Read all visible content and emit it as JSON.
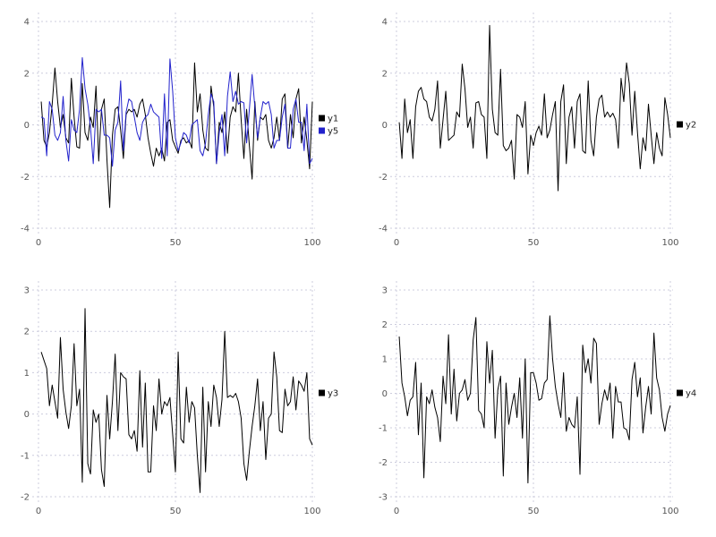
{
  "page": {
    "background": "#ffffff",
    "grid_color": "#ccccdd",
    "tick_label_color": "#555555",
    "legend_text_color": "#222222"
  },
  "chart_data": [
    {
      "type": "line",
      "title": "",
      "xlabel": "",
      "ylabel": "",
      "xlim": [
        0,
        100
      ],
      "ylim": [
        -4,
        4
      ],
      "xticks": [
        0,
        50,
        100
      ],
      "yticks": [
        -4,
        -2,
        0,
        2,
        4
      ],
      "grid": true,
      "legend_position": "right",
      "x_start": 1,
      "x_step": 1,
      "series": [
        {
          "name": "y1",
          "color": "#000000",
          "values": [
            0.9,
            -0.6,
            -0.85,
            -0.3,
            0.8,
            2.2,
            0.9,
            -0.1,
            0.4,
            -0.5,
            -0.7,
            1.8,
            0.3,
            -0.85,
            -0.9,
            1.6,
            -0.3,
            -0.6,
            0.3,
            -0.1,
            1.5,
            -1.4,
            0.6,
            1.0,
            -1.35,
            -3.2,
            -0.4,
            0.6,
            0.7,
            -0.2,
            -1.3,
            0.4,
            0.6,
            0.5,
            0.6,
            0.3,
            0.8,
            1.0,
            0.4,
            -0.5,
            -1.1,
            -1.6,
            -0.9,
            -1.2,
            -0.9,
            -1.4,
            0.1,
            0.2,
            -0.6,
            -0.85,
            -1.1,
            -0.6,
            -0.5,
            -0.7,
            -0.6,
            -0.9,
            2.4,
            0.5,
            1.2,
            -0.2,
            -0.9,
            -1.0,
            1.5,
            0.7,
            -1.5,
            0.1,
            -0.3,
            0.5,
            -1.1,
            0.3,
            0.7,
            0.5,
            2.0,
            0.2,
            -1.3,
            0.6,
            -0.8,
            -2.1,
            0.9,
            -0.6,
            0.3,
            0.2,
            0.4,
            -0.6,
            -0.9,
            -0.5,
            0.3,
            -0.6,
            1.0,
            1.2,
            -0.9,
            0.4,
            -0.5,
            1.0,
            1.4,
            -0.7,
            0.3,
            -0.6,
            -1.7,
            0.9
          ]
        },
        {
          "name": "y5",
          "color": "#2222cc",
          "values": [
            0.3,
            0.25,
            -1.2,
            0.9,
            0.6,
            -0.4,
            -0.6,
            -0.3,
            1.1,
            -0.6,
            -1.4,
            0.2,
            -0.2,
            -0.3,
            0.6,
            2.6,
            1.4,
            0.8,
            -0.1,
            -1.5,
            0.6,
            0.5,
            0.6,
            -0.4,
            -0.4,
            -0.5,
            -1.6,
            -0.2,
            0.1,
            1.7,
            -1.0,
            0.5,
            1.0,
            0.9,
            0.3,
            -0.3,
            -0.6,
            0.1,
            0.3,
            0.4,
            0.8,
            0.5,
            0.4,
            0.3,
            -1.3,
            1.2,
            -1.2,
            2.55,
            1.3,
            -0.5,
            -1.0,
            -0.7,
            -0.3,
            -0.4,
            -0.7,
            0.0,
            0.1,
            0.2,
            -1.0,
            -1.2,
            -0.7,
            0.4,
            1.2,
            0.9,
            -1.5,
            -0.3,
            0.4,
            -1.2,
            1.1,
            2.05,
            0.9,
            1.3,
            0.8,
            0.9,
            0.85,
            -0.7,
            0.6,
            1.95,
            0.7,
            -0.5,
            0.3,
            0.9,
            0.8,
            0.9,
            0.4,
            -0.9,
            -0.6,
            -0.6,
            0.3,
            0.8,
            -0.9,
            -0.9,
            0.6,
            1.0,
            0.1,
            0.1,
            -1.0,
            0.8,
            -1.5,
            -1.3
          ]
        }
      ]
    },
    {
      "type": "line",
      "title": "",
      "xlabel": "",
      "ylabel": "",
      "xlim": [
        0,
        100
      ],
      "ylim": [
        -4,
        4
      ],
      "xticks": [
        0,
        50,
        100
      ],
      "yticks": [
        -4,
        -2,
        0,
        2,
        4
      ],
      "grid": true,
      "legend_position": "right",
      "x_start": 1,
      "x_step": 1,
      "series": [
        {
          "name": "y2",
          "color": "#000000",
          "values": [
            0.1,
            -1.3,
            1.0,
            -0.3,
            0.2,
            -1.3,
            0.7,
            1.3,
            1.45,
            1.0,
            0.9,
            0.3,
            0.15,
            0.6,
            1.7,
            -0.9,
            0.2,
            1.3,
            -0.6,
            -0.5,
            -0.4,
            0.5,
            0.3,
            2.35,
            1.4,
            -0.1,
            0.3,
            -0.9,
            0.85,
            0.9,
            0.4,
            0.3,
            -1.3,
            3.85,
            0.6,
            -0.3,
            -0.4,
            2.15,
            -0.8,
            -1.0,
            -0.9,
            -0.6,
            -2.1,
            0.4,
            0.3,
            -0.1,
            0.9,
            -1.9,
            -0.4,
            -0.8,
            -0.3,
            -0.05,
            -0.4,
            1.2,
            -0.5,
            -0.2,
            0.4,
            0.9,
            -2.55,
            0.9,
            1.55,
            -1.5,
            0.3,
            0.7,
            -0.9,
            0.9,
            1.2,
            -1.0,
            -1.1,
            1.7,
            -0.6,
            -1.2,
            0.3,
            1.0,
            1.15,
            0.3,
            0.5,
            0.3,
            0.45,
            0.2,
            -0.9,
            1.8,
            0.9,
            2.4,
            1.6,
            -0.4,
            1.3,
            -0.3,
            -1.7,
            -0.5,
            -1.0,
            0.8,
            -0.4,
            -1.5,
            -0.3,
            -0.9,
            -1.2,
            1.05,
            0.4,
            -0.5
          ]
        }
      ]
    },
    {
      "type": "line",
      "title": "",
      "xlabel": "",
      "ylabel": "",
      "xlim": [
        0,
        100
      ],
      "ylim": [
        -2,
        3
      ],
      "xticks": [
        0,
        50,
        100
      ],
      "yticks": [
        -2,
        -1,
        0,
        1,
        2,
        3
      ],
      "grid": true,
      "legend_position": "right",
      "x_start": 1,
      "x_step": 1,
      "series": [
        {
          "name": "y3",
          "color": "#000000",
          "values": [
            1.5,
            1.3,
            1.1,
            0.2,
            0.7,
            0.3,
            -0.1,
            1.85,
            0.6,
            0.05,
            -0.35,
            0.2,
            1.7,
            0.2,
            0.6,
            -1.65,
            2.55,
            -1.2,
            -1.45,
            0.1,
            -0.2,
            0.0,
            -1.35,
            -1.75,
            0.45,
            -0.6,
            0.3,
            1.45,
            -0.4,
            1.0,
            0.9,
            0.85,
            -0.5,
            -0.6,
            -0.4,
            -0.9,
            1.05,
            -0.8,
            0.75,
            -1.4,
            -1.4,
            0.2,
            -0.4,
            0.85,
            0.0,
            0.3,
            0.2,
            0.4,
            -0.5,
            -1.4,
            1.5,
            -0.6,
            -0.7,
            0.65,
            -0.2,
            0.3,
            0.15,
            -1.0,
            -1.9,
            0.65,
            -1.4,
            0.3,
            -0.3,
            0.7,
            0.4,
            -0.3,
            0.35,
            2.0,
            0.4,
            0.45,
            0.4,
            0.5,
            0.3,
            -0.1,
            -1.2,
            -1.6,
            -0.9,
            -0.3,
            0.2,
            0.85,
            -0.4,
            0.3,
            -1.1,
            -0.1,
            0.0,
            1.5,
            0.9,
            -0.4,
            -0.45,
            0.6,
            0.2,
            0.3,
            0.9,
            0.1,
            0.8,
            0.7,
            0.55,
            1.0,
            -0.6,
            -0.75
          ]
        }
      ]
    },
    {
      "type": "line",
      "title": "",
      "xlabel": "",
      "ylabel": "",
      "xlim": [
        0,
        100
      ],
      "ylim": [
        -3,
        3
      ],
      "xticks": [
        0,
        50,
        100
      ],
      "yticks": [
        -3,
        -2,
        -1,
        0,
        1,
        2,
        3
      ],
      "grid": true,
      "legend_position": "right",
      "x_start": 1,
      "x_step": 1,
      "series": [
        {
          "name": "y4",
          "color": "#000000",
          "values": [
            1.65,
            0.3,
            -0.1,
            -0.65,
            -0.2,
            -0.1,
            0.9,
            -1.2,
            0.3,
            -2.45,
            -0.1,
            -0.3,
            0.1,
            -0.4,
            -0.7,
            -1.4,
            0.5,
            -0.3,
            1.7,
            -0.6,
            0.7,
            -0.8,
            0.0,
            0.1,
            0.4,
            -0.2,
            0.0,
            1.55,
            2.2,
            -0.5,
            -0.6,
            -1.0,
            1.5,
            0.3,
            1.25,
            -1.3,
            0.1,
            0.5,
            -2.4,
            0.3,
            -0.9,
            -0.4,
            0.0,
            -0.7,
            0.45,
            -1.3,
            1.0,
            -2.6,
            0.6,
            0.6,
            0.3,
            -0.2,
            -0.15,
            0.3,
            0.4,
            2.25,
            1.0,
            0.2,
            -0.3,
            -0.7,
            0.6,
            -1.1,
            -0.7,
            -0.9,
            -1.0,
            -0.1,
            -2.35,
            1.4,
            0.6,
            1.0,
            0.3,
            1.6,
            1.45,
            -0.9,
            -0.3,
            0.1,
            -0.2,
            0.3,
            -1.3,
            0.2,
            -0.25,
            -0.25,
            -1.0,
            -1.05,
            -1.35,
            0.4,
            0.9,
            -0.1,
            0.45,
            -1.15,
            -0.4,
            0.2,
            -0.6,
            1.75,
            0.45,
            0.1,
            -0.7,
            -1.1,
            -0.6,
            -0.35
          ]
        }
      ]
    }
  ]
}
